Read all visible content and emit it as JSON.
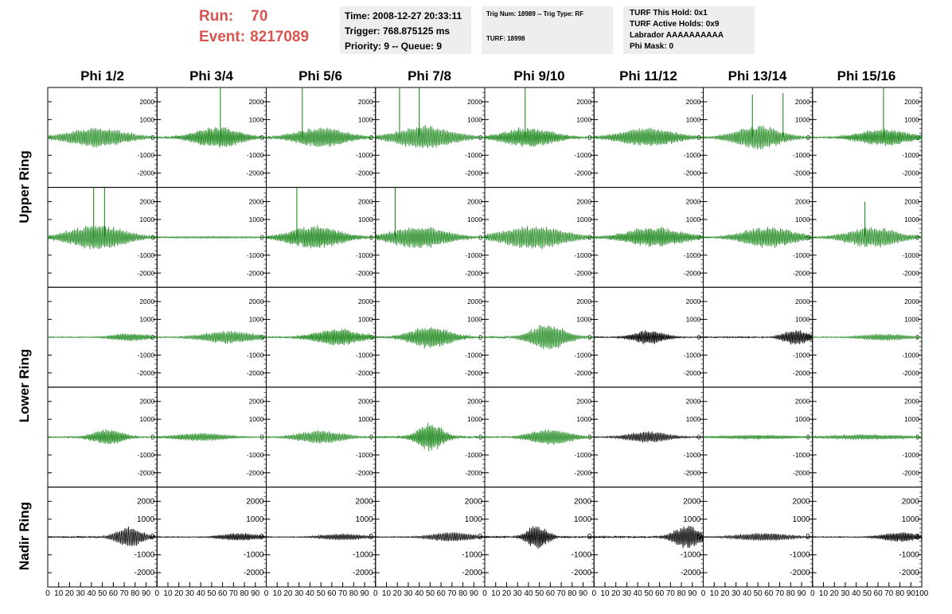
{
  "header": {
    "run_label": "Run:",
    "run_value": "70",
    "event_label": "Event:",
    "event_value": "8217089"
  },
  "info_box_1": {
    "time": "Time: 2008-12-27 20:33:11",
    "trigger": "Trigger: 768.875125 ms",
    "priority": "Priority: 9 -- Queue: 9"
  },
  "info_box_2": {
    "trig": "Trig Num: 18989 -- Trig Type: RF",
    "turf": "TURF: 18998"
  },
  "info_box_3": {
    "this_hold": "TURF This Hold: 0x1",
    "active_holds": "TURF Active Holds: 0x9",
    "labrador": "Labrador AAAAAAAAAA",
    "phi_mask": "Phi Mask: 0"
  },
  "colors": {
    "green_trace": "#228b22",
    "black_trace": "#000000",
    "title_red": "#d9534f"
  },
  "chart_data": {
    "type": "line",
    "columns": [
      "Phi 1/2",
      "Phi 3/4",
      "Phi 5/6",
      "Phi 7/8",
      "Phi 9/10",
      "Phi 11/12",
      "Phi 13/14",
      "Phi 15/16"
    ],
    "rows": [
      "Upper Ring",
      "Upper Ring",
      "Lower Ring",
      "Lower Ring",
      "Nadir Ring"
    ],
    "row_labels": [
      "Upper Ring",
      "Lower Ring",
      "Nadir Ring"
    ],
    "xlim": [
      0,
      100
    ],
    "x_ticks": [
      "0",
      "10",
      "20",
      "30",
      "40",
      "50",
      "60",
      "70",
      "80",
      "90",
      "100"
    ],
    "ylim": [
      -2800,
      2800
    ],
    "y_ticks": [
      2000,
      1000,
      0,
      -1000,
      -2000
    ],
    "y_tick_labels": [
      "2000",
      "1000",
      "0",
      "-1000",
      "-2000"
    ],
    "panels": [
      [
        {
          "amp": 650,
          "center": 45,
          "width": 55,
          "color": "green",
          "spikes": []
        },
        {
          "amp": 700,
          "center": 55,
          "width": 45,
          "color": "green",
          "spikes": [
            {
              "x": 58,
              "y": 2800
            }
          ]
        },
        {
          "amp": 650,
          "center": 50,
          "width": 50,
          "color": "green",
          "spikes": [
            {
              "x": 33,
              "y": 2800
            }
          ]
        },
        {
          "amp": 750,
          "center": 45,
          "width": 55,
          "color": "green",
          "spikes": [
            {
              "x": 22,
              "y": 2800
            },
            {
              "x": 40,
              "y": 2800
            }
          ]
        },
        {
          "amp": 650,
          "center": 40,
          "width": 50,
          "color": "green",
          "spikes": [
            {
              "x": 37,
              "y": 2800
            }
          ]
        },
        {
          "amp": 600,
          "center": 50,
          "width": 55,
          "color": "green",
          "spikes": []
        },
        {
          "amp": 750,
          "center": 50,
          "width": 45,
          "color": "green",
          "spikes": [
            {
              "x": 45,
              "y": 2400
            },
            {
              "x": 73,
              "y": 2500
            }
          ]
        },
        {
          "amp": 550,
          "center": 65,
          "width": 50,
          "color": "green",
          "spikes": [
            {
              "x": 65,
              "y": 2800
            }
          ]
        }
      ],
      [
        {
          "amp": 800,
          "center": 45,
          "width": 55,
          "color": "green",
          "spikes": [
            {
              "x": 42,
              "y": 2800
            },
            {
              "x": 52,
              "y": 2800
            }
          ]
        },
        {
          "amp": 60,
          "center": 50,
          "width": 100,
          "color": "green",
          "spikes": []
        },
        {
          "amp": 750,
          "center": 45,
          "width": 50,
          "color": "green",
          "spikes": [
            {
              "x": 28,
              "y": 2800
            }
          ]
        },
        {
          "amp": 700,
          "center": 40,
          "width": 55,
          "color": "green",
          "spikes": [
            {
              "x": 18,
              "y": 2800
            }
          ]
        },
        {
          "amp": 750,
          "center": 45,
          "width": 60,
          "color": "green",
          "spikes": []
        },
        {
          "amp": 650,
          "center": 55,
          "width": 55,
          "color": "green",
          "spikes": []
        },
        {
          "amp": 700,
          "center": 60,
          "width": 50,
          "color": "green",
          "spikes": []
        },
        {
          "amp": 650,
          "center": 55,
          "width": 50,
          "color": "green",
          "spikes": [
            {
              "x": 48,
              "y": 2000
            }
          ]
        }
      ],
      [
        {
          "amp": 250,
          "center": 75,
          "width": 35,
          "color": "green",
          "spikes": []
        },
        {
          "amp": 400,
          "center": 65,
          "width": 50,
          "color": "green",
          "spikes": []
        },
        {
          "amp": 550,
          "center": 65,
          "width": 45,
          "color": "green",
          "spikes": []
        },
        {
          "amp": 700,
          "center": 50,
          "width": 40,
          "color": "green",
          "spikes": []
        },
        {
          "amp": 800,
          "center": 58,
          "width": 35,
          "color": "green",
          "spikes": []
        },
        {
          "amp": 450,
          "center": 50,
          "width": 30,
          "color": "black",
          "spikes": []
        },
        {
          "amp": 500,
          "center": 85,
          "width": 25,
          "color": "black",
          "spikes": []
        },
        {
          "amp": 200,
          "center": 65,
          "width": 45,
          "color": "green",
          "spikes": []
        }
      ],
      [
        {
          "amp": 500,
          "center": 55,
          "width": 30,
          "color": "green",
          "spikes": []
        },
        {
          "amp": 250,
          "center": 40,
          "width": 50,
          "color": "green",
          "spikes": []
        },
        {
          "amp": 400,
          "center": 50,
          "width": 45,
          "color": "green",
          "spikes": []
        },
        {
          "amp": 900,
          "center": 50,
          "width": 25,
          "color": "green",
          "spikes": []
        },
        {
          "amp": 500,
          "center": 60,
          "width": 40,
          "color": "green",
          "spikes": []
        },
        {
          "amp": 350,
          "center": 50,
          "width": 40,
          "color": "black",
          "spikes": []
        },
        {
          "amp": 120,
          "center": 50,
          "width": 80,
          "color": "green",
          "spikes": []
        },
        {
          "amp": 150,
          "center": 50,
          "width": 80,
          "color": "green",
          "spikes": []
        }
      ],
      [
        {
          "amp": 650,
          "center": 75,
          "width": 25,
          "color": "black",
          "spikes": []
        },
        {
          "amp": 250,
          "center": 75,
          "width": 35,
          "color": "black",
          "spikes": []
        },
        {
          "amp": 200,
          "center": 70,
          "width": 40,
          "color": "black",
          "spikes": []
        },
        {
          "amp": 300,
          "center": 70,
          "width": 40,
          "color": "black",
          "spikes": []
        },
        {
          "amp": 750,
          "center": 48,
          "width": 20,
          "color": "black",
          "spikes": []
        },
        {
          "amp": 750,
          "center": 85,
          "width": 25,
          "color": "black",
          "spikes": []
        },
        {
          "amp": 250,
          "center": 55,
          "width": 50,
          "color": "black",
          "spikes": []
        },
        {
          "amp": 300,
          "center": 80,
          "width": 35,
          "color": "black",
          "spikes": []
        }
      ]
    ]
  }
}
